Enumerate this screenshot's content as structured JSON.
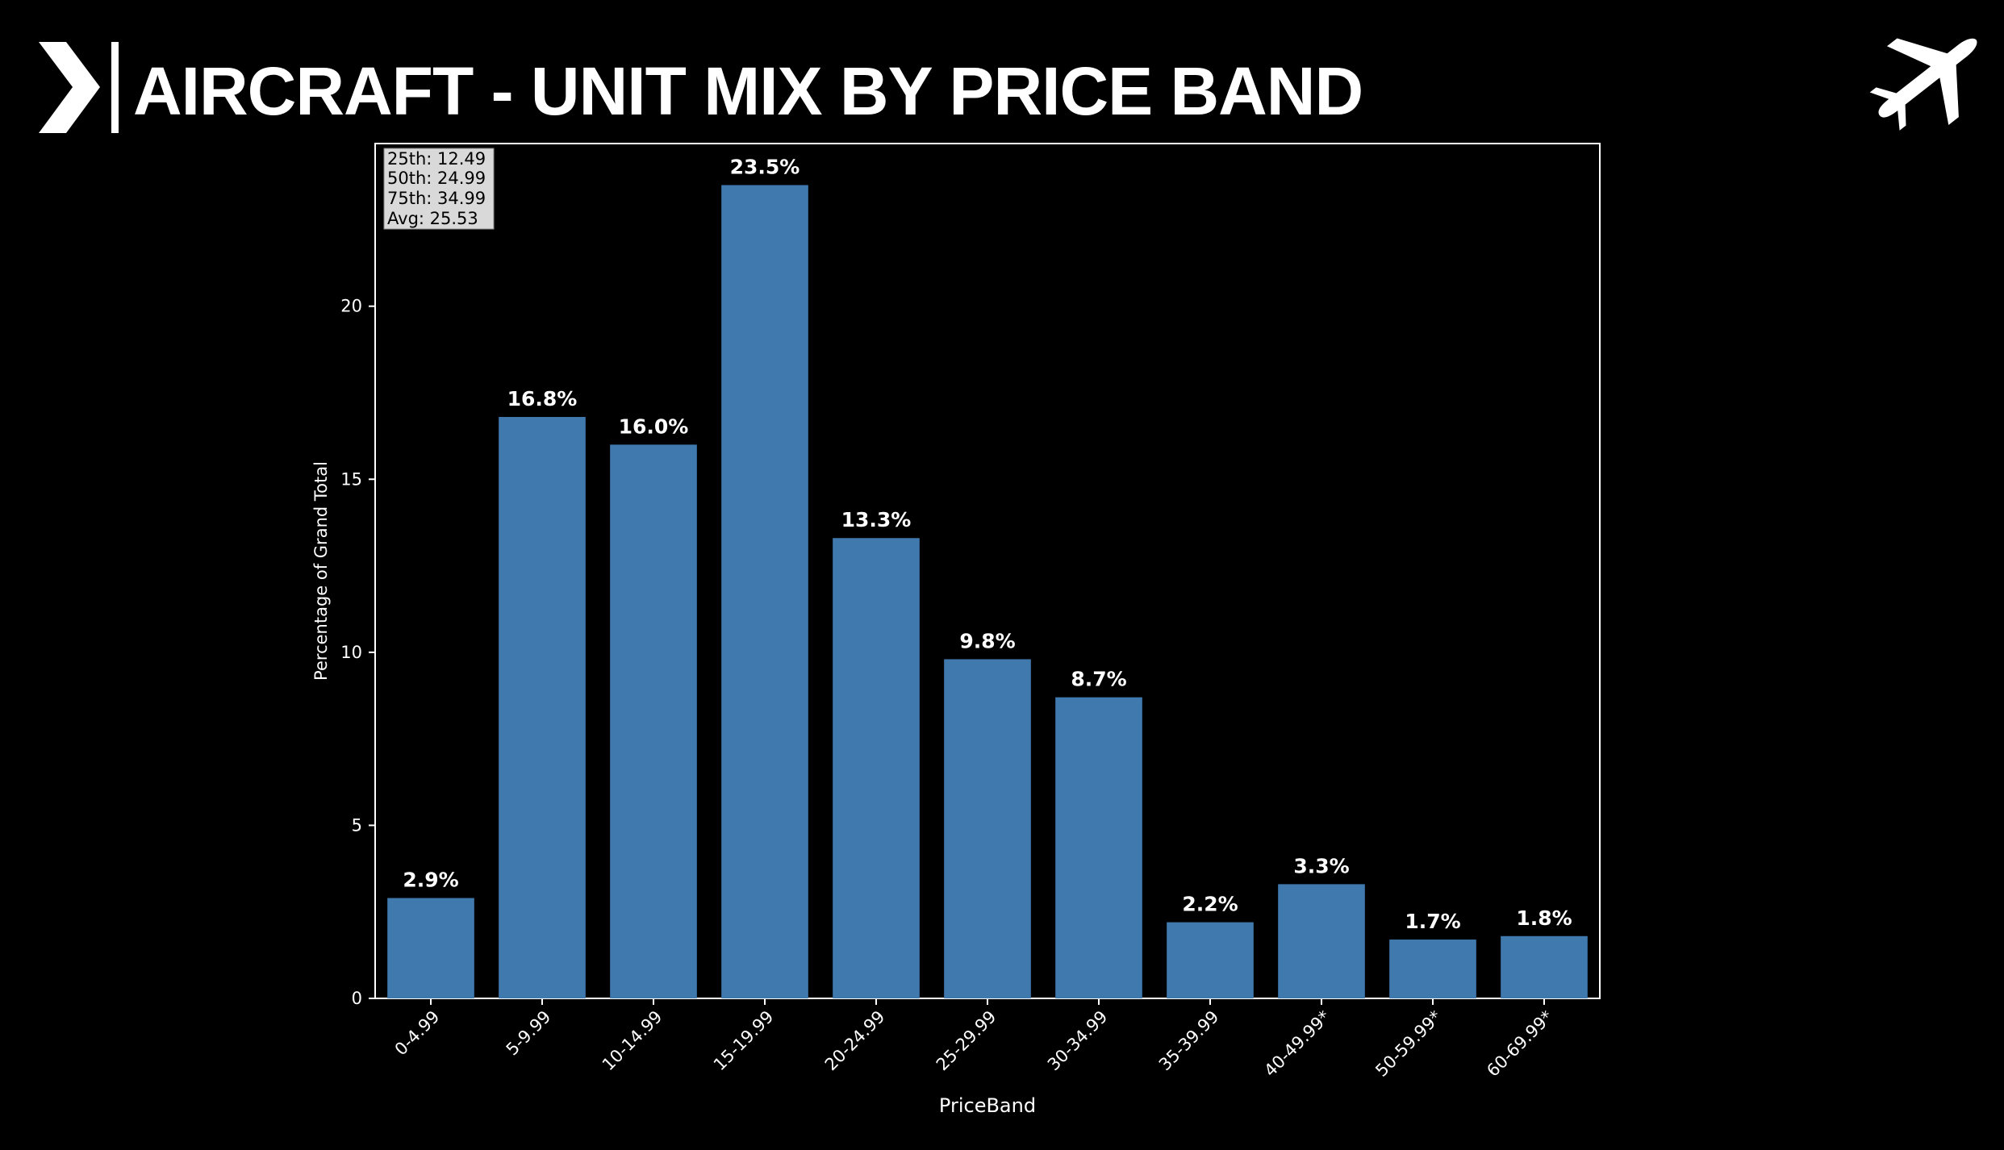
{
  "header": {
    "title": "AIRCRAFT - UNIT MIX BY PRICE BAND",
    "logo_icon": "play-chevron-icon",
    "corner_icon": "airplane-icon"
  },
  "colors": {
    "background": "#000000",
    "bar": "#4079ae",
    "text": "#ffffff",
    "stats_box": "#d9d9d9"
  },
  "chart_data": {
    "type": "bar",
    "title": "",
    "xlabel": "PriceBand",
    "ylabel": "Percentage of Grand Total",
    "categories": [
      "0-4.99",
      "5-9.99",
      "10-14.99",
      "15-19.99",
      "20-24.99",
      "25-29.99",
      "30-34.99",
      "35-39.99",
      "40-49.99*",
      "50-59.99*",
      "60-69.99*"
    ],
    "values": [
      2.9,
      16.8,
      16.0,
      23.5,
      13.3,
      9.8,
      8.7,
      2.2,
      3.3,
      1.7,
      1.8
    ],
    "data_labels": [
      "2.9%",
      "16.8%",
      "16.0%",
      "23.5%",
      "13.3%",
      "9.8%",
      "8.7%",
      "2.2%",
      "3.3%",
      "1.7%",
      "1.8%"
    ],
    "yticks": [
      0,
      5,
      10,
      15,
      20
    ],
    "ylim": [
      0,
      24.7
    ],
    "grid": false,
    "stats_box": [
      "25th: 12.49",
      "50th: 24.99",
      "75th: 34.99",
      "Avg: 25.53"
    ]
  }
}
